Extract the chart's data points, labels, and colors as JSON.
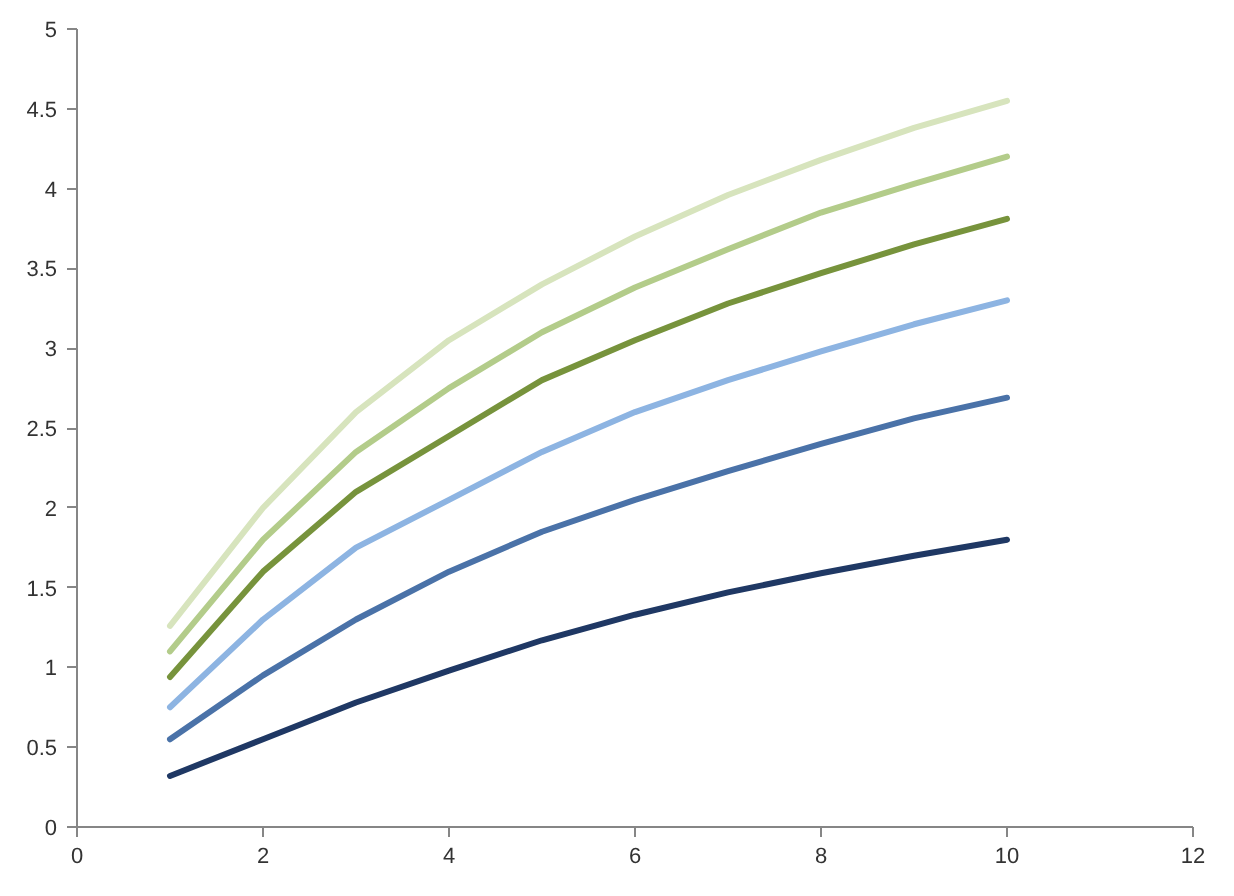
{
  "chart_data": {
    "type": "line",
    "x": [
      1,
      2,
      3,
      4,
      5,
      6,
      7,
      8,
      9,
      10
    ],
    "series": [
      {
        "color": "#1f3864",
        "values": [
          0.32,
          0.55,
          0.78,
          0.98,
          1.17,
          1.33,
          1.47,
          1.59,
          1.7,
          1.8
        ]
      },
      {
        "color": "#4a72a8",
        "values": [
          0.55,
          0.95,
          1.3,
          1.6,
          1.85,
          2.05,
          2.23,
          2.4,
          2.56,
          2.69
        ]
      },
      {
        "color": "#8db4e2",
        "values": [
          0.75,
          1.3,
          1.75,
          2.05,
          2.35,
          2.6,
          2.8,
          2.98,
          3.15,
          3.3
        ]
      },
      {
        "color": "#77933c",
        "values": [
          0.94,
          1.6,
          2.1,
          2.45,
          2.8,
          3.05,
          3.28,
          3.47,
          3.65,
          3.81
        ]
      },
      {
        "color": "#b3cc8a",
        "values": [
          1.1,
          1.8,
          2.35,
          2.75,
          3.1,
          3.38,
          3.62,
          3.85,
          4.03,
          4.2
        ]
      },
      {
        "color": "#d7e4bd",
        "values": [
          1.26,
          2.0,
          2.6,
          3.05,
          3.4,
          3.7,
          3.96,
          4.18,
          4.38,
          4.55
        ]
      }
    ],
    "xlim": [
      0,
      12
    ],
    "xticks": [
      0,
      2,
      4,
      6,
      8,
      10,
      12
    ],
    "ylim": [
      0,
      5
    ],
    "yticks": [
      0,
      0.5,
      1,
      1.5,
      2,
      2.5,
      3,
      3.5,
      4,
      4.5,
      5
    ],
    "grid": false,
    "marker": "none",
    "line_style": "solid"
  }
}
